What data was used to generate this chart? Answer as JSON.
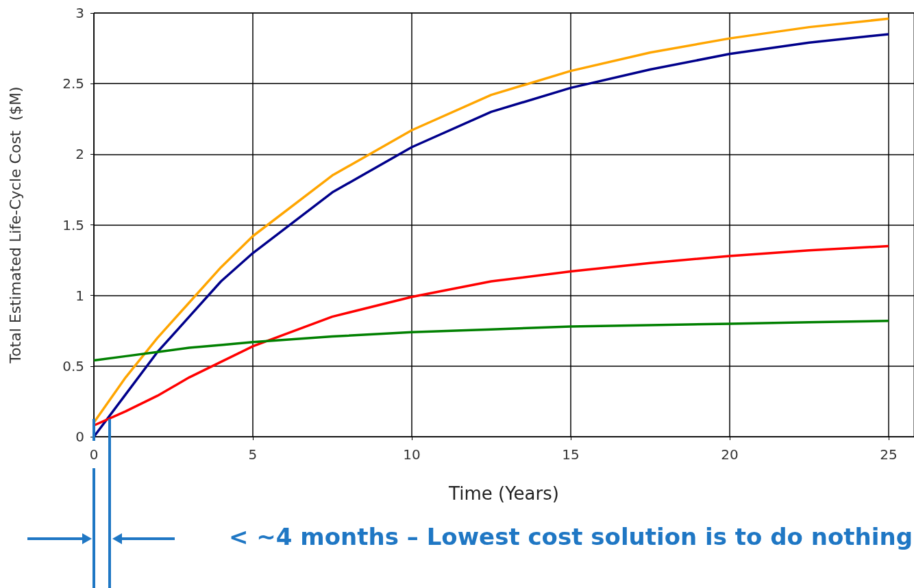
{
  "chart_data": {
    "type": "line",
    "xlabel": "Time (Years)",
    "ylabel": "Total Estimated Life-Cycle Cost  ($M)",
    "x": [
      0,
      1,
      2,
      3,
      4,
      5,
      7.5,
      10,
      12.5,
      15,
      17.5,
      20,
      22.5,
      25
    ],
    "series": [
      {
        "color": "#ffa500",
        "values": [
          0.1,
          0.42,
          0.7,
          0.95,
          1.2,
          1.42,
          1.85,
          2.17,
          2.42,
          2.59,
          2.72,
          2.82,
          2.9,
          2.96
        ]
      },
      {
        "color": "#00008b",
        "values": [
          0.0,
          0.3,
          0.6,
          0.85,
          1.1,
          1.3,
          1.73,
          2.05,
          2.3,
          2.47,
          2.6,
          2.71,
          2.79,
          2.85
        ]
      },
      {
        "color": "#ff0000",
        "values": [
          0.08,
          0.18,
          0.29,
          0.42,
          0.53,
          0.64,
          0.85,
          0.99,
          1.1,
          1.17,
          1.23,
          1.28,
          1.32,
          1.35
        ]
      },
      {
        "color": "#008000",
        "values": [
          0.54,
          0.57,
          0.6,
          0.63,
          0.65,
          0.67,
          0.71,
          0.74,
          0.76,
          0.78,
          0.79,
          0.8,
          0.81,
          0.82
        ]
      }
    ],
    "xlim": [
      0,
      25.8
    ],
    "xticks": [
      0,
      5,
      10,
      15,
      20,
      25
    ],
    "ylim": [
      0,
      3
    ],
    "yticks": [
      0,
      0.5,
      1,
      1.5,
      2,
      2.5,
      3
    ],
    "grid": true,
    "marker": "none",
    "line_style": "solid",
    "annotations": [
      "< ~4 months – Lowest cost solution is to do nothing"
    ]
  }
}
